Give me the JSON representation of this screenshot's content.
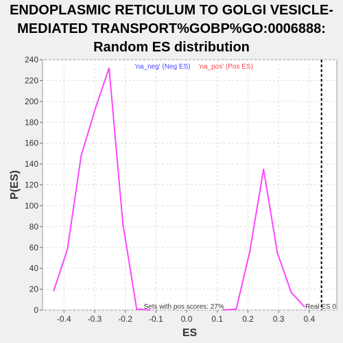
{
  "chart_data": {
    "type": "line",
    "title": "ENDOPLASMIC RETICULUM TO GOLGI VESICLE-MEDIATED TRANSPORT%GOBP%GO:0006888: Random ES distribution",
    "title_lines": [
      "ENDOPLASMIC RETICULUM TO GOLGI VESICLE-",
      "MEDIATED TRANSPORT%GOBP%GO:0006888:",
      "Random ES distribution"
    ],
    "xlabel": "ES",
    "ylabel": "P(ES)",
    "xlim": [
      -0.47,
      0.49
    ],
    "ylim": [
      0,
      240
    ],
    "x_ticks": [
      -0.4,
      -0.3,
      -0.2,
      -0.1,
      0.0,
      0.1,
      0.2,
      0.3,
      0.4
    ],
    "x_tick_labels": [
      "-0.4",
      "-0.3",
      "-0.2",
      "-0.1",
      "0.0",
      "0.1",
      "0.2",
      "0.3",
      "0.4"
    ],
    "y_ticks": [
      0,
      20,
      40,
      60,
      80,
      100,
      120,
      140,
      160,
      180,
      200,
      220,
      240
    ],
    "grid": true,
    "series": [
      {
        "name": "'na_neg' (Neg ES)",
        "color": "#ff44ff",
        "x": [
          -0.434,
          -0.389,
          -0.344,
          -0.298,
          -0.253,
          -0.208,
          -0.163,
          -0.118
        ],
        "y": [
          18,
          58,
          148,
          193,
          232,
          83,
          1,
          0
        ]
      },
      {
        "name": "'na_pos' (Pos ES)",
        "color": "#ff44ff",
        "x": [
          0.118,
          0.162,
          0.206,
          0.251,
          0.296,
          0.341,
          0.385
        ],
        "y": [
          0,
          1,
          56,
          135,
          55,
          17,
          3
        ]
      }
    ],
    "legend": [
      {
        "label": "'na_neg' (Neg ES)",
        "color": "#4444ff"
      },
      {
        "label": "'na_pos' (Pos ES)",
        "color": "#ff4444"
      }
    ],
    "legend_position": "top-center",
    "real_es": {
      "x": 0.44,
      "label": "Real ES 0"
    },
    "annotation": "Sets with pos scores: 27%"
  }
}
